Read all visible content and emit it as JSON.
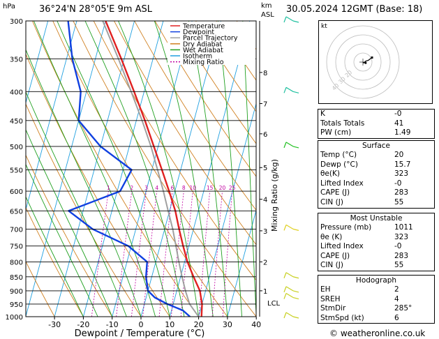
{
  "header": {
    "units_left": "hPa",
    "location": "36°24'N 28°05'E 9m ASL",
    "units_km": "km",
    "units_asl": "ASL",
    "datetime": "30.05.2024 12GMT (Base: 18)"
  },
  "chart_data": {
    "type": "skew-t log-p",
    "xlabel": "Dewpoint / Temperature (°C)",
    "ylabel_right": "Mixing Ratio (g/kg)",
    "x_ticks": [
      -30,
      -20,
      -10,
      0,
      10,
      20,
      30,
      40
    ],
    "pressure_levels": [
      300,
      350,
      400,
      450,
      500,
      550,
      600,
      650,
      700,
      750,
      800,
      850,
      900,
      950,
      1000
    ],
    "km_ticks": [
      {
        "km": "1",
        "p": 900
      },
      {
        "km": "2",
        "p": 800
      },
      {
        "km": "3",
        "p": 705
      },
      {
        "km": "4",
        "p": 620
      },
      {
        "km": "5",
        "p": 545
      },
      {
        "km": "6",
        "p": 475
      },
      {
        "km": "7",
        "p": 420
      },
      {
        "km": "8",
        "p": 370
      }
    ],
    "lcl_label": "LCL",
    "lcl_p": 945,
    "mixing_ratio_labels": [
      "1",
      "2",
      "3",
      "4",
      "6",
      "8",
      "10",
      "15",
      "20",
      "25"
    ],
    "mixing_ratio_values": [
      1,
      2,
      3,
      4,
      6,
      8,
      10,
      15,
      20,
      25
    ],
    "legend": [
      {
        "name": "Temperature",
        "color": "#e02020",
        "dash": ""
      },
      {
        "name": "Dewpoint",
        "color": "#1040e0",
        "dash": ""
      },
      {
        "name": "Parcel Trajectory",
        "color": "#a0a0a0",
        "dash": ""
      },
      {
        "name": "Dry Adiabat",
        "color": "#d08020",
        "dash": ""
      },
      {
        "name": "Wet Adiabat",
        "color": "#20a020",
        "dash": ""
      },
      {
        "name": "Isotherm",
        "color": "#20a0e0",
        "dash": ""
      },
      {
        "name": "Mixing Ratio",
        "color": "#c000a0",
        "dash": "2,2"
      }
    ],
    "series": [
      {
        "name": "Temperature",
        "color": "#e02020",
        "points": [
          [
            1000,
            21
          ],
          [
            950,
            20
          ],
          [
            900,
            18
          ],
          [
            850,
            14.5
          ],
          [
            800,
            11
          ],
          [
            750,
            8
          ],
          [
            700,
            5
          ],
          [
            650,
            2
          ],
          [
            600,
            -2
          ],
          [
            550,
            -6.5
          ],
          [
            500,
            -11.5
          ],
          [
            450,
            -17
          ],
          [
            400,
            -23.5
          ],
          [
            350,
            -31
          ],
          [
            300,
            -40
          ]
        ]
      },
      {
        "name": "Dewpoint",
        "color": "#1040e0",
        "points": [
          [
            1000,
            17
          ],
          [
            975,
            14
          ],
          [
            950,
            8
          ],
          [
            925,
            3
          ],
          [
            900,
            0
          ],
          [
            850,
            -2
          ],
          [
            800,
            -3
          ],
          [
            750,
            -11
          ],
          [
            700,
            -25
          ],
          [
            650,
            -35
          ],
          [
            600,
            -19
          ],
          [
            550,
            -17
          ],
          [
            500,
            -30
          ],
          [
            450,
            -40
          ],
          [
            400,
            -42
          ],
          [
            350,
            -48
          ],
          [
            300,
            -53
          ]
        ]
      },
      {
        "name": "Parcel Trajectory",
        "color": "#a0a0a0",
        "points": [
          [
            1000,
            20
          ],
          [
            950,
            15.7
          ],
          [
            900,
            13
          ],
          [
            850,
            10.5
          ],
          [
            800,
            8
          ],
          [
            750,
            5.5
          ],
          [
            700,
            2.8
          ],
          [
            650,
            -0.5
          ],
          [
            600,
            -4
          ],
          [
            550,
            -8
          ],
          [
            500,
            -12.5
          ],
          [
            450,
            -18
          ],
          [
            400,
            -24.5
          ],
          [
            350,
            -32
          ],
          [
            300,
            -41
          ]
        ]
      }
    ]
  },
  "hodograph": {
    "label": "kt",
    "ring_labels": [
      "10",
      "20",
      "30",
      "40"
    ],
    "wind_points": [
      [
        0,
        0
      ],
      [
        1,
        -1
      ],
      [
        3,
        1
      ],
      [
        6,
        2
      ],
      [
        10,
        5
      ]
    ],
    "storm_motion": [
      3,
      -1
    ]
  },
  "indices": {
    "rows": [
      {
        "k": "K",
        "v": "-0"
      },
      {
        "k": "Totals Totals",
        "v": "41"
      },
      {
        "k": "PW (cm)",
        "v": "1.49"
      }
    ]
  },
  "surface": {
    "title": "Surface",
    "rows": [
      {
        "k": "Temp (°C)",
        "v": "20"
      },
      {
        "k": "Dewp (°C)",
        "v": "15.7"
      },
      {
        "k": "θe(K)",
        "v": "323"
      },
      {
        "k": "Lifted Index",
        "v": "-0"
      },
      {
        "k": "CAPE (J)",
        "v": "283"
      },
      {
        "k": "CIN (J)",
        "v": "55"
      }
    ]
  },
  "most_unstable": {
    "title": "Most Unstable",
    "rows": [
      {
        "k": "Pressure (mb)",
        "v": "1011"
      },
      {
        "k": "θe (K)",
        "v": "323"
      },
      {
        "k": "Lifted Index",
        "v": "-0"
      },
      {
        "k": "CAPE (J)",
        "v": "283"
      },
      {
        "k": "CIN (J)",
        "v": "55"
      }
    ]
  },
  "hodograph_table": {
    "title": "Hodograph",
    "rows": [
      {
        "k": "EH",
        "v": "2"
      },
      {
        "k": "SREH",
        "v": "4"
      },
      {
        "k": "StmDir",
        "v": "285°"
      },
      {
        "k": "StmSpd (kt)",
        "v": "6"
      }
    ]
  },
  "wind_barbs": [
    {
      "p": 300,
      "color": "#20c0a0"
    },
    {
      "p": 400,
      "color": "#20c0a0"
    },
    {
      "p": 500,
      "color": "#20c020"
    },
    {
      "p": 700,
      "color": "#e0d020"
    },
    {
      "p": 850,
      "color": "#c8d020"
    },
    {
      "p": 900,
      "color": "#c8d020"
    },
    {
      "p": 925,
      "color": "#c8d020"
    },
    {
      "p": 1000,
      "color": "#c8d020"
    }
  ],
  "footer": {
    "copyright": "© weatheronline.co.uk"
  }
}
